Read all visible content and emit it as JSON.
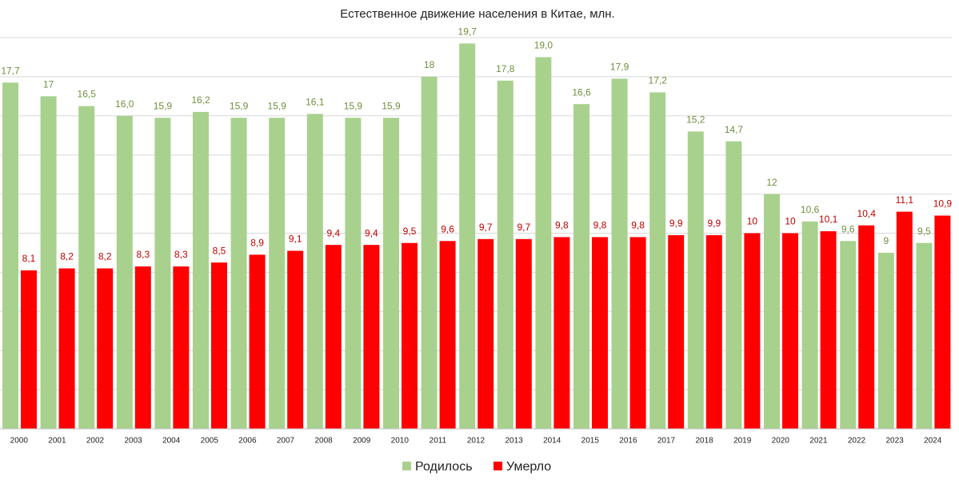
{
  "chart_data": {
    "type": "grouped_bar",
    "title": "Естественное движение населения в Китае, млн.",
    "categories": [
      "2000",
      "2001",
      "2002",
      "2003",
      "2004",
      "2005",
      "2006",
      "2007",
      "2008",
      "2009",
      "2010",
      "2011",
      "2012",
      "2013",
      "2014",
      "2015",
      "2016",
      "2017",
      "2018",
      "2019",
      "2020",
      "2021",
      "2022",
      "2023",
      "2024"
    ],
    "series": [
      {
        "name": "Родилось",
        "color": "#a9d18e",
        "label_color": "#6f8f3f",
        "values": [
          17.7,
          17,
          16.5,
          16.0,
          15.9,
          16.2,
          15.9,
          15.9,
          16.1,
          15.9,
          15.9,
          18,
          19.7,
          17.8,
          19.0,
          16.6,
          17.9,
          17.2,
          15.2,
          14.7,
          12,
          10.6,
          9.6,
          9,
          9.5
        ],
        "value_labels": [
          "17,7",
          "17",
          "16,5",
          "16,0",
          "15,9",
          "16,2",
          "15,9",
          "15,9",
          "16,1",
          "15,9",
          "15,9",
          "18",
          "19,7",
          "17,8",
          "19,0",
          "16,6",
          "17,9",
          "17,2",
          "15,2",
          "14,7",
          "12",
          "10,6",
          "9,6",
          "9",
          "9,5"
        ]
      },
      {
        "name": "Умерло",
        "color": "#ff0000",
        "label_color": "#c00000",
        "values": [
          8.1,
          8.2,
          8.2,
          8.3,
          8.3,
          8.5,
          8.9,
          9.1,
          9.4,
          9.4,
          9.5,
          9.6,
          9.7,
          9.7,
          9.8,
          9.8,
          9.8,
          9.9,
          9.9,
          10,
          10,
          10.1,
          10.4,
          11.1,
          10.9
        ],
        "value_labels": [
          "8,1",
          "8,2",
          "8,2",
          "8,3",
          "8,3",
          "8,5",
          "8,9",
          "9,1",
          "9,4",
          "9,4",
          "9,5",
          "9,6",
          "9,7",
          "9,7",
          "9,8",
          "9,8",
          "9,8",
          "9,9",
          "9,9",
          "10",
          "10",
          "10,1",
          "10,4",
          "11,1",
          "10,9"
        ]
      }
    ],
    "ylim": [
      0,
      20
    ],
    "yticks": [
      0,
      2,
      4,
      6,
      8,
      10,
      12,
      14,
      16,
      18,
      20
    ],
    "grid": true
  }
}
